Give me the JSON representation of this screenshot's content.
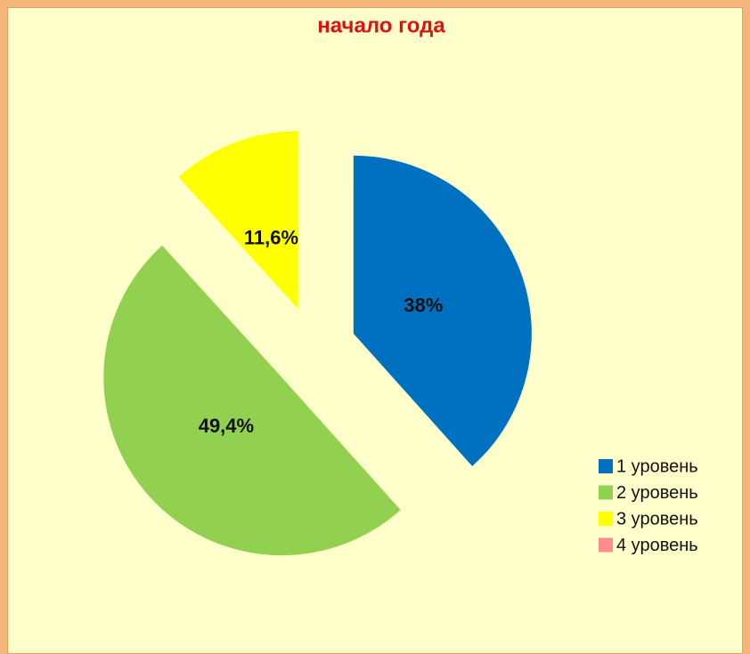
{
  "chart_data": {
    "type": "pie",
    "title": "начало года",
    "categories": [
      "1 уровень",
      "2 уровень",
      "3 уровень",
      "4 уровень"
    ],
    "values": [
      38,
      49.4,
      11.6,
      0
    ],
    "value_labels": [
      "38%",
      "49,4%",
      "11,6%",
      null
    ],
    "colors": [
      "#0070c0",
      "#92d050",
      "#ffff00",
      "#ff8c8c"
    ],
    "legend": "right"
  }
}
